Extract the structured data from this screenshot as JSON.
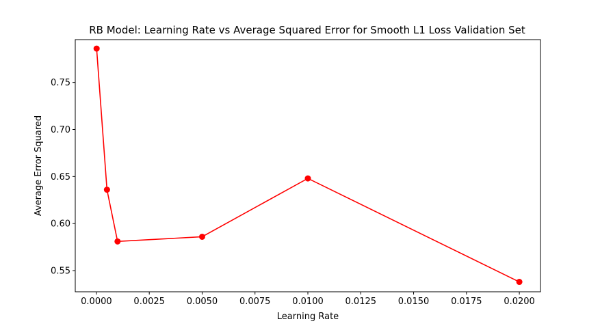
{
  "chart_data": {
    "type": "line",
    "title": "RB Model: Learning Rate vs Average Squared Error for Smooth L1 Loss Validation Set",
    "xlabel": "Learning Rate",
    "ylabel": "Average Error Squared",
    "xlim": [
      -0.001,
      0.021
    ],
    "ylim": [
      0.5275,
      0.7955
    ],
    "x_ticks": [
      0.0,
      0.0025,
      0.005,
      0.0075,
      0.01,
      0.0125,
      0.015,
      0.0175,
      0.02
    ],
    "x_tick_labels": [
      "0.0000",
      "0.0025",
      "0.0050",
      "0.0075",
      "0.0100",
      "0.0125",
      "0.0150",
      "0.0175",
      "0.0200"
    ],
    "y_ticks": [
      0.55,
      0.6,
      0.65,
      0.7,
      0.75
    ],
    "y_tick_labels": [
      "0.55",
      "0.60",
      "0.65",
      "0.70",
      "0.75"
    ],
    "grid": false,
    "series": [
      {
        "color": "#ff0000",
        "marker": "circle",
        "x": [
          1e-05,
          0.0005,
          0.001,
          0.005,
          0.01,
          0.02
        ],
        "y": [
          0.786,
          0.636,
          0.581,
          0.586,
          0.648,
          0.538
        ]
      }
    ]
  }
}
